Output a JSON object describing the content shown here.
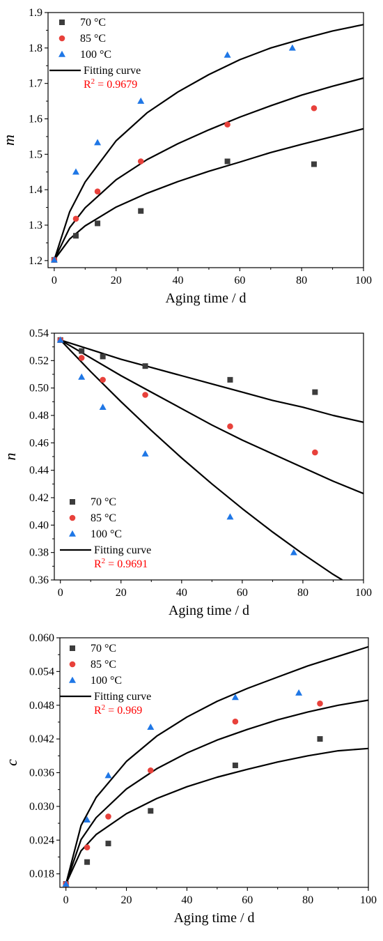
{
  "colors": {
    "series_70": "#3c3c3c",
    "series_85": "#e8413b",
    "series_100": "#1f77e6",
    "fit": "#000000",
    "r2": "#ff0000"
  },
  "chart_data": [
    {
      "type": "scatter",
      "xlabel": "Aging time / d",
      "ylabel": "m",
      "xlim": [
        -2,
        100
      ],
      "ylim": [
        1.18,
        1.9
      ],
      "xticks": [
        "0",
        "20",
        "40",
        "60",
        "80",
        "100"
      ],
      "yticks": [
        "1.2",
        "1.3",
        "1.4",
        "1.5",
        "1.6",
        "1.7",
        "1.8",
        "1.9"
      ],
      "legend_position": "top-left",
      "series": [
        {
          "name": "70 °C",
          "marker": "square",
          "x": [
            0,
            7,
            14,
            28,
            56,
            84
          ],
          "y": [
            1.202,
            1.27,
            1.305,
            1.34,
            1.48,
            1.472
          ]
        },
        {
          "name": "85 °C",
          "marker": "circle",
          "x": [
            0,
            7,
            14,
            28,
            56,
            84
          ],
          "y": [
            1.202,
            1.318,
            1.395,
            1.48,
            1.584,
            1.63
          ]
        },
        {
          "name": "100 °C",
          "marker": "triangle",
          "x": [
            0,
            7,
            14,
            28,
            56,
            77
          ],
          "y": [
            1.202,
            1.45,
            1.533,
            1.65,
            1.78,
            1.8
          ]
        }
      ],
      "fit": {
        "name": "Fitting curve",
        "r2": "R² = 0.9679",
        "curves": [
          {
            "x": [
              0,
              5,
              10,
              20,
              30,
              40,
              50,
              60,
              70,
              80,
              90,
              100
            ],
            "y": [
              1.202,
              1.261,
              1.298,
              1.351,
              1.39,
              1.423,
              1.452,
              1.478,
              1.505,
              1.528,
              1.55,
              1.572
            ]
          },
          {
            "x": [
              0,
              5,
              10,
              20,
              30,
              40,
              50,
              60,
              70,
              80,
              90,
              100
            ],
            "y": [
              1.202,
              1.293,
              1.349,
              1.428,
              1.485,
              1.53,
              1.569,
              1.605,
              1.637,
              1.667,
              1.692,
              1.715
            ]
          },
          {
            "x": [
              0,
              5,
              10,
              20,
              30,
              40,
              50,
              60,
              70,
              80,
              90,
              100
            ],
            "y": [
              1.202,
              1.338,
              1.422,
              1.538,
              1.617,
              1.676,
              1.725,
              1.767,
              1.8,
              1.825,
              1.848,
              1.866
            ]
          }
        ]
      }
    },
    {
      "type": "scatter",
      "xlabel": "Aging time / d",
      "ylabel": "n",
      "xlim": [
        -2,
        100
      ],
      "ylim": [
        0.36,
        0.54
      ],
      "xticks": [
        "0",
        "20",
        "40",
        "60",
        "80",
        "100"
      ],
      "yticks": [
        "0.36",
        "0.38",
        "0.40",
        "0.42",
        "0.44",
        "0.46",
        "0.48",
        "0.50",
        "0.52",
        "0.54"
      ],
      "legend_position": "bottom-left",
      "series": [
        {
          "name": "70 °C",
          "marker": "square",
          "x": [
            0,
            7,
            14,
            28,
            56,
            84
          ],
          "y": [
            0.535,
            0.527,
            0.523,
            0.516,
            0.506,
            0.497
          ]
        },
        {
          "name": "85 °C",
          "marker": "circle",
          "x": [
            0,
            7,
            14,
            28,
            56,
            84
          ],
          "y": [
            0.535,
            0.522,
            0.506,
            0.495,
            0.472,
            0.453
          ]
        },
        {
          "name": "100 °C",
          "marker": "triangle",
          "x": [
            0,
            7,
            14,
            28,
            56,
            77
          ],
          "y": [
            0.535,
            0.508,
            0.486,
            0.452,
            0.406,
            0.38
          ]
        }
      ],
      "fit": {
        "name": "Fitting curve",
        "r2": "R² = 0.9691",
        "curves": [
          {
            "x": [
              0,
              10,
              20,
              30,
              40,
              50,
              60,
              70,
              80,
              90,
              100
            ],
            "y": [
              0.535,
              0.528,
              0.521,
              0.515,
              0.509,
              0.503,
              0.497,
              0.491,
              0.486,
              0.48,
              0.475
            ]
          },
          {
            "x": [
              0,
              10,
              20,
              30,
              40,
              50,
              60,
              70,
              80,
              90,
              100
            ],
            "y": [
              0.535,
              0.522,
              0.509,
              0.497,
              0.485,
              0.473,
              0.462,
              0.452,
              0.442,
              0.432,
              0.423
            ]
          },
          {
            "x": [
              0,
              10,
              20,
              30,
              40,
              50,
              60,
              70,
              80,
              90,
              93
            ],
            "y": [
              0.535,
              0.512,
              0.49,
              0.469,
              0.449,
              0.43,
              0.412,
              0.395,
              0.379,
              0.364,
              0.36
            ]
          }
        ]
      }
    },
    {
      "type": "scatter",
      "xlabel": "Aging time / d",
      "ylabel": "c",
      "xlim": [
        -2,
        100
      ],
      "ylim": [
        0.0156,
        0.06
      ],
      "xticks": [
        "0",
        "20",
        "40",
        "60",
        "80",
        "100"
      ],
      "yticks": [
        "0.018",
        "0.024",
        "0.030",
        "0.036",
        "0.042",
        "0.048",
        "0.054",
        "0.060"
      ],
      "ytick_values": [
        0.018,
        0.024,
        0.03,
        0.036,
        0.042,
        0.048,
        0.054,
        0.06
      ],
      "legend_position": "top-left",
      "series": [
        {
          "name": "70 °C",
          "marker": "square",
          "x": [
            0,
            7,
            14,
            28,
            56,
            84
          ],
          "y": [
            0.0162,
            0.0201,
            0.0234,
            0.0292,
            0.0373,
            0.042
          ]
        },
        {
          "name": "85 °C",
          "marker": "circle",
          "x": [
            0,
            7,
            14,
            28,
            56,
            84
          ],
          "y": [
            0.0162,
            0.0227,
            0.0282,
            0.0364,
            0.0451,
            0.0483
          ]
        },
        {
          "name": "100 °C",
          "marker": "triangle",
          "x": [
            0,
            7,
            14,
            28,
            56,
            77
          ],
          "y": [
            0.0162,
            0.0276,
            0.0355,
            0.0441,
            0.0494,
            0.0502
          ]
        }
      ],
      "fit": {
        "name": "Fitting curve",
        "r2": "R² = 0.969",
        "curves": [
          {
            "x": [
              0,
              5,
              10,
              20,
              30,
              40,
              50,
              60,
              70,
              80,
              90,
              100
            ],
            "y": [
              0.0162,
              0.0221,
              0.025,
              0.0287,
              0.0314,
              0.0335,
              0.0352,
              0.0366,
              0.0379,
              0.039,
              0.0399,
              0.0403
            ]
          },
          {
            "x": [
              0,
              5,
              10,
              20,
              30,
              40,
              50,
              60,
              70,
              80,
              90,
              100
            ],
            "y": [
              0.0162,
              0.0241,
              0.028,
              0.0331,
              0.0367,
              0.0395,
              0.0418,
              0.0437,
              0.0454,
              0.0468,
              0.048,
              0.0489
            ]
          },
          {
            "x": [
              0,
              5,
              10,
              20,
              30,
              40,
              50,
              60,
              70,
              80,
              90,
              100
            ],
            "y": [
              0.0162,
              0.0266,
              0.0316,
              0.038,
              0.0425,
              0.0459,
              0.0487,
              0.051,
              0.053,
              0.055,
              0.0567,
              0.0584
            ]
          }
        ]
      }
    }
  ]
}
